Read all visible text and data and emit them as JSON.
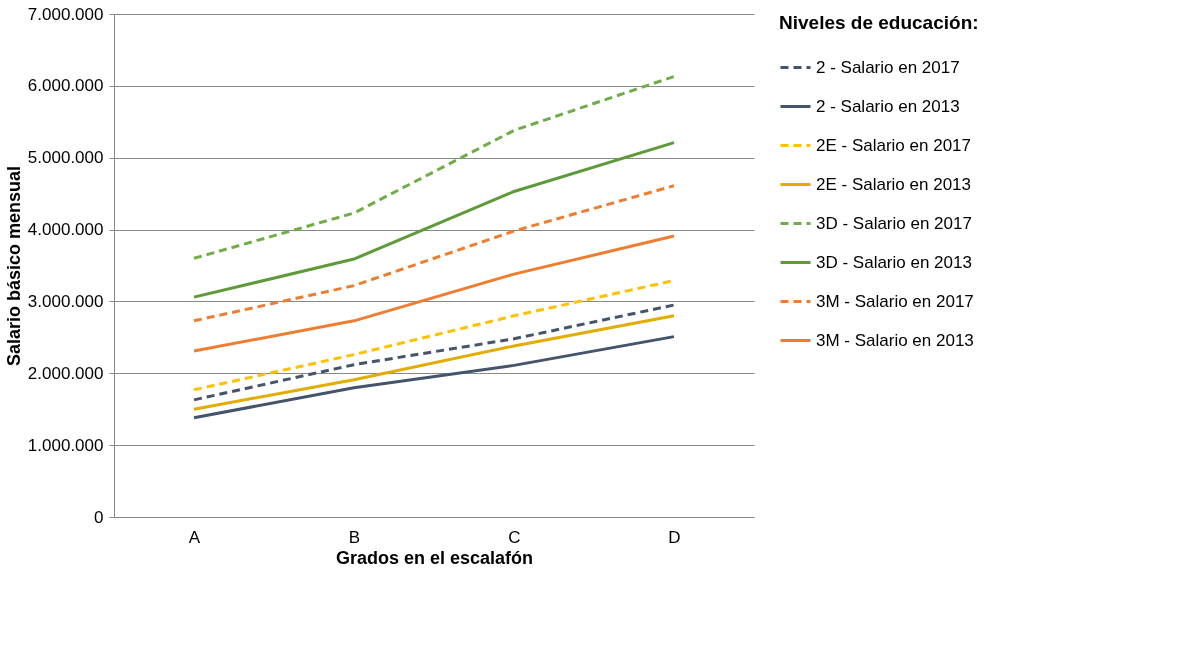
{
  "chart_data": {
    "type": "line",
    "xlabel": "Grados en el escalafón",
    "ylabel": "Salario básico mensual",
    "legend_title": "Niveles de educación:",
    "legend": "right",
    "grid": "y",
    "marker": "none",
    "categories": [
      "A",
      "B",
      "C",
      "D"
    ],
    "ylim": [
      0,
      7000000
    ],
    "yticks": [
      {
        "value": 0,
        "label": "0"
      },
      {
        "value": 1000000,
        "label": "1.000.000"
      },
      {
        "value": 2000000,
        "label": "2.000.000"
      },
      {
        "value": 3000000,
        "label": "3.000.000"
      },
      {
        "value": 4000000,
        "label": "4.000.000"
      },
      {
        "value": 5000000,
        "label": "5.000.000"
      },
      {
        "value": 6000000,
        "label": "6.000.000"
      },
      {
        "value": 7000000,
        "label": "7.000.000"
      }
    ],
    "series": [
      {
        "name": "2 - Salario en 2017",
        "color": "#44546a",
        "line_style": "dashed",
        "values": [
          1630000,
          2120000,
          2480000,
          2950000
        ]
      },
      {
        "name": "2 - Salario en 2013",
        "color": "#44546a",
        "line_style": "solid",
        "values": [
          1380000,
          1800000,
          2110000,
          2510000
        ]
      },
      {
        "name": "2E - Salario en 2017",
        "color": "#ffc000",
        "line_style": "dashed",
        "values": [
          1770000,
          2260000,
          2800000,
          3290000
        ]
      },
      {
        "name": "2E - Salario en 2013",
        "color": "#e2ac00",
        "line_style": "solid",
        "values": [
          1500000,
          1910000,
          2380000,
          2800000
        ]
      },
      {
        "name": "3D - Salario en 2017",
        "color": "#70ad47",
        "line_style": "dashed",
        "values": [
          3600000,
          4230000,
          5380000,
          6130000
        ]
      },
      {
        "name": "3D - Salario en 2013",
        "color": "#5e9a3a",
        "line_style": "solid",
        "values": [
          3060000,
          3590000,
          4530000,
          5210000
        ]
      },
      {
        "name": "3M - Salario en 2017",
        "color": "#ed7d31",
        "line_style": "dashed",
        "values": [
          2730000,
          3220000,
          3980000,
          4610000
        ]
      },
      {
        "name": "3M - Salario en 2013",
        "color": "#ed7d31",
        "line_style": "solid",
        "values": [
          2310000,
          2730000,
          3380000,
          3910000
        ]
      }
    ]
  }
}
